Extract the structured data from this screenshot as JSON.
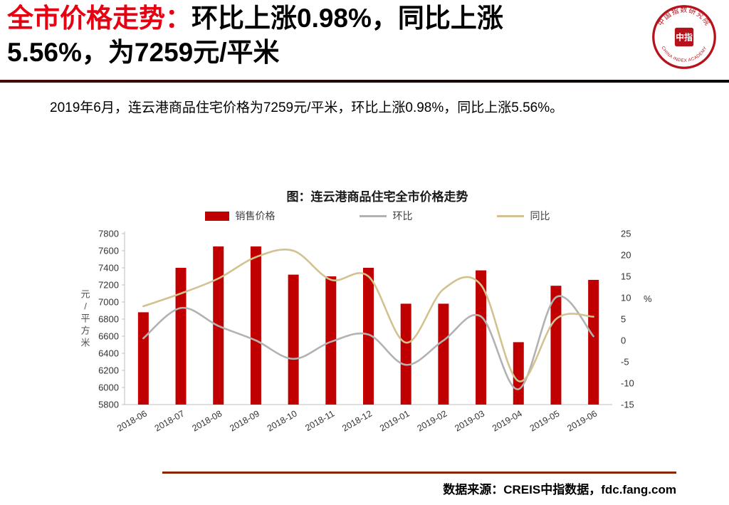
{
  "header": {
    "title_red": "全市价格走势：",
    "title_black_line1": "环比上涨0.98%，同比上涨",
    "title_black_line2": "5.56%，为7259元/平米",
    "logo": {
      "center_text": "中指",
      "arc_top": "中国指数研究院",
      "arc_bottom": "CHINA INDEX ACADEMY",
      "color": "#b5121b"
    }
  },
  "body": {
    "paragraph": "2019年6月，连云港商品住宅价格为7259元/平米，环比上涨0.98%，同比上涨5.56%。"
  },
  "footer": {
    "source": "数据来源：CREIS中指数据，fdc.fang.com"
  },
  "chart_data": {
    "type": "bar",
    "title": "图：连云港商品住宅全市价格走势",
    "categories": [
      "2018-06",
      "2018-07",
      "2018-08",
      "2018-09",
      "2018-10",
      "2018-11",
      "2018-12",
      "2019-01",
      "2019-02",
      "2019-03",
      "2019-04",
      "2019-05",
      "2019-06"
    ],
    "series": [
      {
        "name": "销售价格",
        "type": "bar",
        "axis": "left",
        "color": "#c00000",
        "values": [
          6880,
          7400,
          7650,
          7650,
          7320,
          7300,
          7400,
          6980,
          6980,
          7370,
          6530,
          7190,
          7259
        ]
      },
      {
        "name": "环比",
        "type": "line",
        "axis": "right",
        "color": "#b2b2b2",
        "values": [
          0.5,
          7.6,
          3.4,
          0,
          -4.3,
          -0.3,
          1.4,
          -5.7,
          0,
          5.6,
          -11.4,
          10.1,
          0.98
        ]
      },
      {
        "name": "同比",
        "type": "line",
        "axis": "right",
        "color": "#d2c28f",
        "values": [
          8,
          11,
          14.5,
          19.5,
          21,
          14.2,
          15,
          -0.5,
          12,
          13,
          -9.5,
          5,
          5.56
        ]
      }
    ],
    "left_axis": {
      "min": 5800,
      "max": 7800,
      "step": 200,
      "title": "元/平方米"
    },
    "right_axis": {
      "min": -15,
      "max": 25,
      "step": 5,
      "unit": "%"
    },
    "grid": false,
    "legend_position": "top"
  }
}
